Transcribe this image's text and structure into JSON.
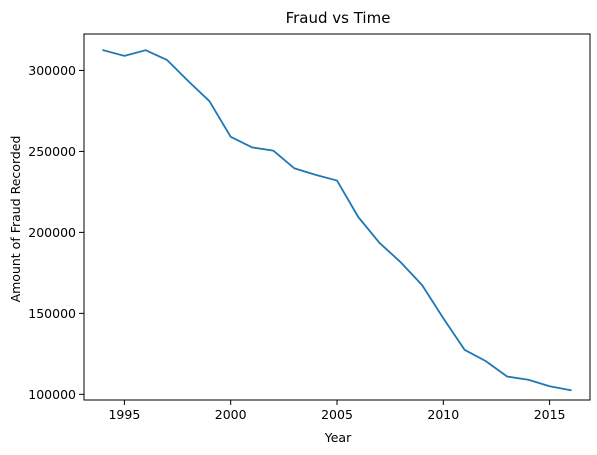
{
  "chart_data": {
    "type": "line",
    "title": "Fraud vs Time",
    "xlabel": "Year",
    "ylabel": "Amount of Fraud Recorded",
    "xlim": [
      1993.1,
      2016.9
    ],
    "ylim": [
      96500,
      322500
    ],
    "xticks": [
      1995,
      2000,
      2005,
      2010,
      2015
    ],
    "yticks": [
      100000,
      150000,
      200000,
      250000,
      300000
    ],
    "grid": false,
    "x": [
      1994,
      1995,
      1996,
      1997,
      1998,
      1999,
      2000,
      2001,
      2002,
      2003,
      2004,
      2005,
      2006,
      2007,
      2008,
      2009,
      2010,
      2011,
      2012,
      2013,
      2014,
      2015,
      2016
    ],
    "series": [
      {
        "values": [
          312500,
          309000,
          312500,
          306500,
          293500,
          281000,
          259000,
          252500,
          250500,
          239500,
          235500,
          232000,
          209500,
          193500,
          181500,
          167500,
          147000,
          127500,
          120500,
          111000,
          109000,
          105000,
          102500
        ],
        "color": "#1f77b4"
      }
    ]
  }
}
